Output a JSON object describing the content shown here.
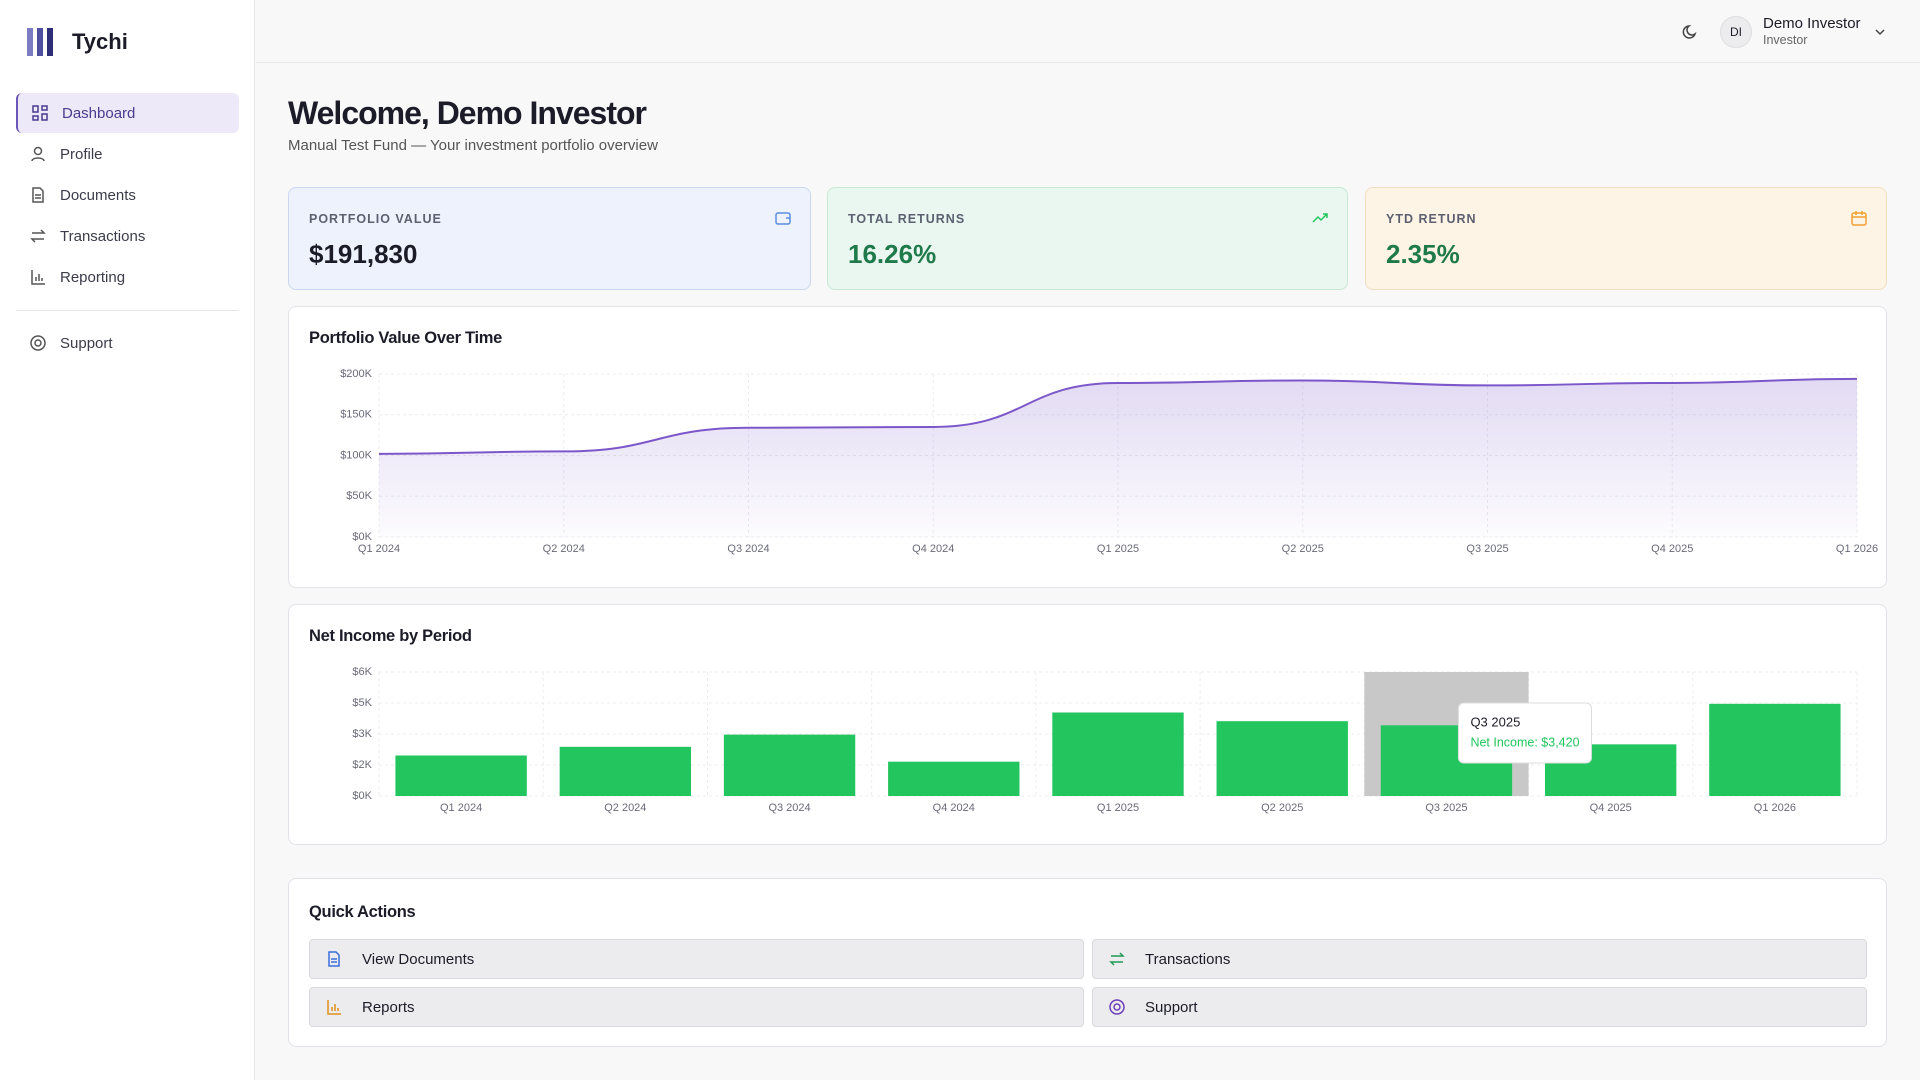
{
  "sidebar": {
    "brand": "Tychi",
    "nav": [
      "Dashboard",
      "Profile",
      "Documents",
      "Transactions",
      "Reporting"
    ],
    "support": "Support"
  },
  "header": {
    "initials": "DI",
    "name": "Demo Investor",
    "role": "Investor"
  },
  "welcome": {
    "title": "Welcome, Demo Investor",
    "subtitle": "Manual Test Fund — Your investment portfolio overview"
  },
  "cards": [
    {
      "label": "PORTFOLIO VALUE",
      "value": "$191,830"
    },
    {
      "label": "TOTAL RETURNS",
      "value": "16.26%"
    },
    {
      "label": "YTD RETURN",
      "value": "2.35%"
    }
  ],
  "chart_data": [
    {
      "type": "area",
      "title": "Portfolio Value Over Time",
      "categories": [
        "Q1 2024",
        "Q2 2024",
        "Q3 2024",
        "Q4 2024",
        "Q1 2025",
        "Q2 2025",
        "Q3 2025",
        "Q4 2025",
        "Q1 2026"
      ],
      "values": [
        102000,
        105000,
        134000,
        135000,
        189000,
        192000,
        186000,
        189000,
        194000
      ],
      "color": "#7b57c9",
      "ylim": [
        0,
        200000
      ],
      "yticks": [
        {
          "value": 0,
          "label": "$0K"
        },
        {
          "value": 50000,
          "label": "$50K"
        },
        {
          "value": 100000,
          "label": "$100K"
        },
        {
          "value": 150000,
          "label": "$150K"
        },
        {
          "value": 200000,
          "label": "$200K"
        }
      ],
      "grid": true
    },
    {
      "type": "bar",
      "title": "Net Income by Period",
      "categories": [
        "Q1 2024",
        "Q2 2024",
        "Q3 2024",
        "Q4 2024",
        "Q1 2025",
        "Q2 2025",
        "Q3 2025",
        "Q4 2025",
        "Q1 2026"
      ],
      "values": [
        1960,
        2380,
        2970,
        1660,
        4040,
        3620,
        3420,
        2500,
        4460
      ],
      "color": "#22c55e",
      "ylim": [
        0,
        6000
      ],
      "yticks": [
        {
          "value": 0,
          "label": "$0K"
        },
        {
          "value": 1500,
          "label": "$2K"
        },
        {
          "value": 3000,
          "label": "$3K"
        },
        {
          "value": 4500,
          "label": "$5K"
        },
        {
          "value": 6000,
          "label": "$6K"
        }
      ],
      "grid": true,
      "tooltip": {
        "index": 6,
        "label": "Net Income: $3,420"
      }
    }
  ],
  "quick_actions": {
    "title": "Quick Actions",
    "items": [
      "View Documents",
      "Transactions",
      "Reports",
      "Support"
    ]
  }
}
